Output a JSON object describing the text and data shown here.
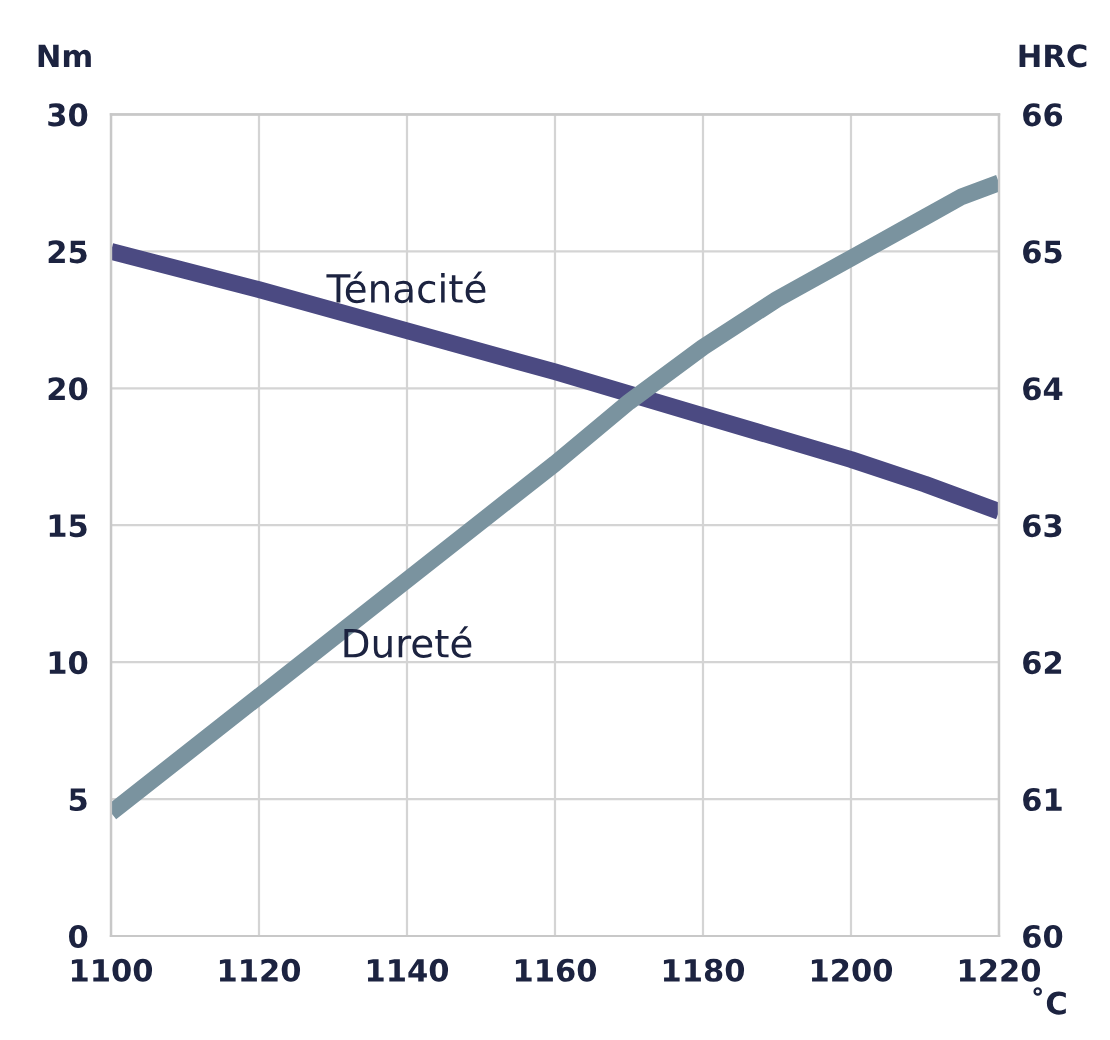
{
  "chart_data": {
    "type": "line",
    "xlabel": "˚C",
    "ylabel": "Nm",
    "y2label": "HRC",
    "xlim": [
      1100,
      1220
    ],
    "xticks": [
      1100,
      1120,
      1140,
      1160,
      1180,
      1200,
      1220
    ],
    "ylim": [
      0,
      30
    ],
    "yticks": [
      0,
      5,
      10,
      15,
      20,
      25,
      30
    ],
    "y2lim": [
      60,
      66
    ],
    "y2ticks": [
      60,
      61,
      62,
      63,
      64,
      65,
      66
    ],
    "grid": true,
    "legend": false,
    "marker": "none",
    "line_style": "solid",
    "series": [
      {
        "name": "Ténacité",
        "color": "#4b4a82",
        "x": [
          1100,
          1120,
          1140,
          1160,
          1180,
          1200,
          1210,
          1220
        ],
        "values": [
          25,
          23.6,
          22.1,
          20.6,
          19.0,
          17.4,
          16.5,
          15.5
        ]
      },
      {
        "name": "Dureté",
        "color": "#7a939f",
        "axis": "y2",
        "x": [
          1100,
          1120,
          1140,
          1160,
          1170,
          1180,
          1190,
          1200,
          1210,
          1215,
          1220
        ],
        "values": [
          60.9,
          61.75,
          62.6,
          63.45,
          63.9,
          64.3,
          64.65,
          64.95,
          65.25,
          65.4,
          65.5
        ]
      }
    ]
  }
}
